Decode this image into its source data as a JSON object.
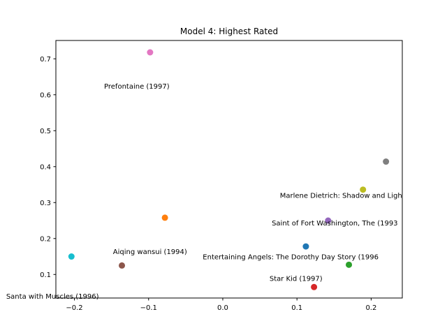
{
  "chart_data": {
    "type": "scatter",
    "title": "Model 4: Highest Rated",
    "xlabel": "",
    "ylabel": "",
    "xlim": [
      -0.225,
      0.242
    ],
    "ylim": [
      0.0345,
      0.751
    ],
    "x_ticks": [
      -0.2,
      -0.1,
      0.0,
      0.1,
      0.2
    ],
    "x_tick_labels": [
      "−0.2",
      "−0.1",
      "0.0",
      "0.1",
      "0.2"
    ],
    "y_ticks": [
      0.1,
      0.2,
      0.3,
      0.4,
      0.5,
      0.6,
      0.7
    ],
    "y_tick_labels": [
      "0.1",
      "0.2",
      "0.3",
      "0.4",
      "0.5",
      "0.6",
      "0.7"
    ],
    "grid": false,
    "legend": "none",
    "points": [
      {
        "x": 0.112,
        "y": 0.178,
        "color": "#1f77b4"
      },
      {
        "x": -0.078,
        "y": 0.258,
        "color": "#ff7f0e"
      },
      {
        "x": 0.17,
        "y": 0.127,
        "color": "#2ca02c"
      },
      {
        "x": 0.123,
        "y": 0.065,
        "color": "#d62728"
      },
      {
        "x": 0.142,
        "y": 0.25,
        "color": "#9467bd"
      },
      {
        "x": -0.136,
        "y": 0.125,
        "color": "#8c564b"
      },
      {
        "x": -0.098,
        "y": 0.718,
        "color": "#e377c2"
      },
      {
        "x": 0.22,
        "y": 0.414,
        "color": "#7f7f7f"
      },
      {
        "x": 0.189,
        "y": 0.336,
        "color": "#bcbd22"
      },
      {
        "x": -0.204,
        "y": 0.15,
        "color": "#17becf"
      }
    ],
    "annotations": [
      {
        "text": "Prefontaine (1997)",
        "x": -0.16,
        "y": 0.617
      },
      {
        "text": "Marlene Dietrich: Shadow and Ligh",
        "x": 0.077,
        "y": 0.313
      },
      {
        "text": "Saint of Fort Washington, The (1993",
        "x": 0.066,
        "y": 0.236
      },
      {
        "text": "Aiqing wansui (1994)",
        "x": -0.148,
        "y": 0.157
      },
      {
        "text": "Entertaining Angels: The Dorothy Day Story (1996",
        "x": -0.027,
        "y": 0.142
      },
      {
        "text": "Star Kid (1997)",
        "x": 0.063,
        "y": 0.082
      },
      {
        "text": "Santa with Muscles (1996)",
        "x": -0.292,
        "y": 0.033
      }
    ]
  }
}
